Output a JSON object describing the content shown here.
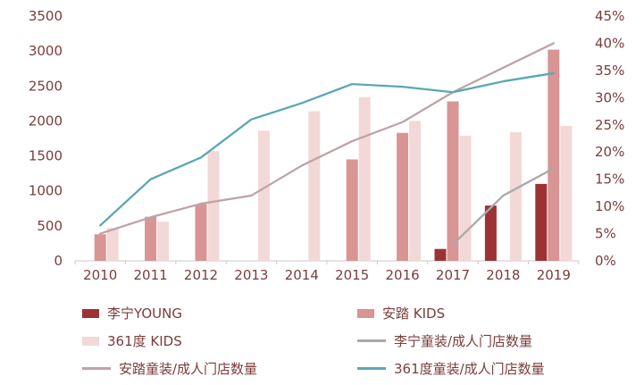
{
  "chart_data": {
    "type": "combo-bar-line",
    "title": "",
    "categories": [
      "2010",
      "2011",
      "2012",
      "2013",
      "2014",
      "2015",
      "2016",
      "2017",
      "2018",
      "2019"
    ],
    "left_axis": {
      "min": 0,
      "max": 3500,
      "step": 500,
      "tick_labels": [
        "0",
        "500",
        "1000",
        "1500",
        "2000",
        "2500",
        "3000",
        "3500"
      ]
    },
    "right_axis": {
      "min": 0,
      "max": 45,
      "step": 5,
      "suffix": "%",
      "tick_labels": [
        "0%",
        "5%",
        "10%",
        "15%",
        "20%",
        "25%",
        "30%",
        "35%",
        "40%",
        "45%"
      ]
    },
    "bar_series": [
      {
        "name": "李宁YOUNG",
        "color": "#9d3235",
        "axis": "left",
        "values": [
          null,
          null,
          null,
          null,
          null,
          null,
          null,
          170,
          790,
          1100
        ]
      },
      {
        "name": "安踏 KIDS",
        "color": "#d89594",
        "axis": "left",
        "values": [
          380,
          630,
          810,
          null,
          null,
          1450,
          1830,
          2280,
          null,
          3020
        ]
      },
      {
        "name": "361度 KIDS",
        "color": "#f2d8d6",
        "axis": "left",
        "values": [
          470,
          560,
          1570,
          1860,
          2140,
          2340,
          2000,
          1790,
          1840,
          1930
        ]
      }
    ],
    "line_series": [
      {
        "name": "李宁童装/成人门店数量",
        "color": "#a9a9a9",
        "axis": "right",
        "values": [
          null,
          null,
          null,
          null,
          null,
          null,
          null,
          3,
          12,
          17
        ]
      },
      {
        "name": "安踏童装/成人门店数量",
        "color": "#bfa3a8",
        "axis": "right",
        "values": [
          5,
          8,
          10.5,
          12,
          17.5,
          22,
          25.5,
          31,
          35.5,
          40
        ]
      },
      {
        "name": "361度童装/成人门店数量",
        "color": "#5aa7b5",
        "axis": "right",
        "values": [
          6.5,
          15,
          19,
          26,
          29,
          32.5,
          32,
          31,
          33,
          34.5
        ]
      }
    ],
    "grid": false,
    "legend_position": "bottom"
  },
  "style": {
    "text_color": "#7b3c3c",
    "axis_line_color": "#c9c9c9",
    "background": "#ffffff"
  }
}
